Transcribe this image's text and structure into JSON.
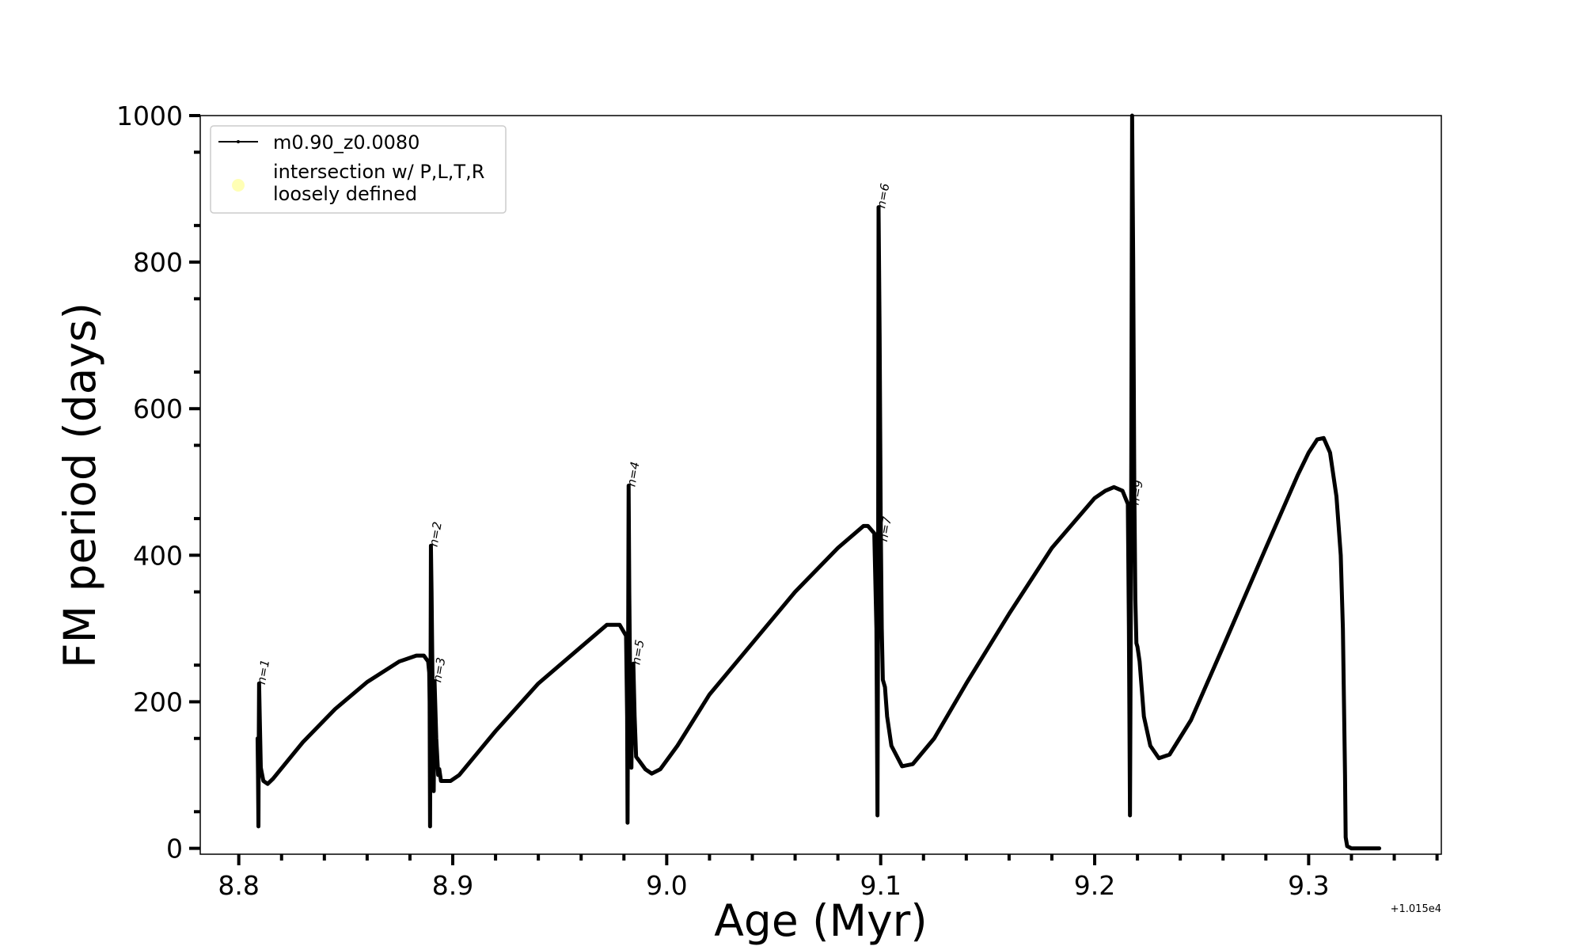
{
  "chart_data": {
    "type": "line",
    "xlabel": "Age (Myr)",
    "ylabel": "FM period (days)",
    "x_offset_label": "+1.015e4",
    "xlim": [
      8.782,
      9.362
    ],
    "ylim": [
      -8,
      1000
    ],
    "xticks": [
      8.8,
      8.9,
      9.0,
      9.1,
      9.2,
      9.3
    ],
    "xtick_labels": [
      "8.8",
      "8.9",
      "9.0",
      "9.1",
      "9.2",
      "9.3"
    ],
    "yticks": [
      0,
      200,
      400,
      600,
      800,
      1000
    ],
    "ytick_labels": [
      "0",
      "200",
      "400",
      "600",
      "800",
      "1000"
    ],
    "grid": false,
    "legend_position": "top-left",
    "legend": [
      {
        "label": "m0.90_z0.0080",
        "marker": "line",
        "color": "#000000"
      },
      {
        "label": "intersection w/ P,L,T,R\nloosely defined",
        "marker": "circle",
        "color": "#ffffa8"
      }
    ],
    "series": [
      {
        "name": "m0.90_z0.0080",
        "color": "#000000",
        "points": [
          [
            8.8088,
            150
          ],
          [
            8.809,
            100
          ],
          [
            8.8092,
            30
          ],
          [
            8.8093,
            120
          ],
          [
            8.8095,
            225
          ],
          [
            8.8098,
            180
          ],
          [
            8.8103,
            110
          ],
          [
            8.8115,
            92
          ],
          [
            8.8135,
            88
          ],
          [
            8.816,
            95
          ],
          [
            8.83,
            145
          ],
          [
            8.845,
            190
          ],
          [
            8.86,
            227
          ],
          [
            8.875,
            255
          ],
          [
            8.883,
            263
          ],
          [
            8.8865,
            263
          ],
          [
            8.8885,
            255
          ],
          [
            8.889,
            240
          ],
          [
            8.8892,
            200
          ],
          [
            8.8894,
            30
          ],
          [
            8.8896,
            200
          ],
          [
            8.8898,
            413
          ],
          [
            8.8901,
            350
          ],
          [
            8.8905,
            240
          ],
          [
            8.8909,
            150
          ],
          [
            8.8911,
            78
          ],
          [
            8.8915,
            228
          ],
          [
            8.8923,
            150
          ],
          [
            8.8932,
            100
          ],
          [
            8.8937,
            108
          ],
          [
            8.8945,
            92
          ],
          [
            8.899,
            92
          ],
          [
            8.903,
            100
          ],
          [
            8.92,
            160
          ],
          [
            8.94,
            225
          ],
          [
            8.96,
            275
          ],
          [
            8.972,
            305
          ],
          [
            8.978,
            305
          ],
          [
            8.981,
            290
          ],
          [
            8.9815,
            180
          ],
          [
            8.9817,
            35
          ],
          [
            8.9819,
            200
          ],
          [
            8.9822,
            495
          ],
          [
            8.9825,
            350
          ],
          [
            8.983,
            200
          ],
          [
            8.9835,
            110
          ],
          [
            8.984,
            230
          ],
          [
            8.9844,
            252
          ],
          [
            8.985,
            180
          ],
          [
            8.9857,
            125
          ],
          [
            8.987,
            120
          ],
          [
            8.99,
            108
          ],
          [
            8.993,
            102
          ],
          [
            8.997,
            108
          ],
          [
            9.005,
            140
          ],
          [
            9.02,
            210
          ],
          [
            9.04,
            280
          ],
          [
            9.06,
            350
          ],
          [
            9.08,
            410
          ],
          [
            9.092,
            440
          ],
          [
            9.094,
            440
          ],
          [
            9.097,
            430
          ],
          [
            9.098,
            300
          ],
          [
            9.0985,
            45
          ],
          [
            9.0988,
            350
          ],
          [
            9.099,
            875
          ],
          [
            9.0995,
            700
          ],
          [
            9.1,
            450
          ],
          [
            9.1005,
            300
          ],
          [
            9.101,
            230
          ],
          [
            9.102,
            220
          ],
          [
            9.103,
            180
          ],
          [
            9.105,
            140
          ],
          [
            9.11,
            112
          ],
          [
            9.115,
            115
          ],
          [
            9.125,
            150
          ],
          [
            9.14,
            225
          ],
          [
            9.16,
            320
          ],
          [
            9.18,
            410
          ],
          [
            9.2,
            478
          ],
          [
            9.205,
            488
          ],
          [
            9.209,
            493
          ],
          [
            9.213,
            488
          ],
          [
            9.2155,
            470
          ],
          [
            9.216,
            300
          ],
          [
            9.2165,
            45
          ],
          [
            9.217,
            400
          ],
          [
            9.2175,
            1000
          ],
          [
            9.218,
            800
          ],
          [
            9.2185,
            500
          ],
          [
            9.219,
            340
          ],
          [
            9.2195,
            280
          ],
          [
            9.22,
            275
          ],
          [
            9.221,
            255
          ],
          [
            9.223,
            180
          ],
          [
            9.226,
            140
          ],
          [
            9.23,
            123
          ],
          [
            9.235,
            128
          ],
          [
            9.245,
            175
          ],
          [
            9.26,
            275
          ],
          [
            9.28,
            410
          ],
          [
            9.295,
            510
          ],
          [
            9.3,
            540
          ],
          [
            9.304,
            558
          ],
          [
            9.307,
            560
          ],
          [
            9.31,
            540
          ],
          [
            9.313,
            480
          ],
          [
            9.315,
            400
          ],
          [
            9.316,
            300
          ],
          [
            9.3165,
            200
          ],
          [
            9.317,
            100
          ],
          [
            9.3173,
            15
          ],
          [
            9.318,
            3
          ],
          [
            9.32,
            0
          ],
          [
            9.325,
            0
          ],
          [
            9.333,
            0
          ]
        ]
      }
    ],
    "annotations": [
      {
        "text": "n=1",
        "x": 8.8093,
        "y": 225
      },
      {
        "text": "n=2",
        "x": 8.8898,
        "y": 413
      },
      {
        "text": "n=3",
        "x": 8.8915,
        "y": 228
      },
      {
        "text": "n=4",
        "x": 8.9822,
        "y": 495
      },
      {
        "text": "n=5",
        "x": 8.9844,
        "y": 252
      },
      {
        "text": "n=6",
        "x": 9.099,
        "y": 875
      },
      {
        "text": "n=7",
        "x": 9.1,
        "y": 420
      },
      {
        "text": "n=9",
        "x": 9.2175,
        "y": 470
      }
    ]
  }
}
